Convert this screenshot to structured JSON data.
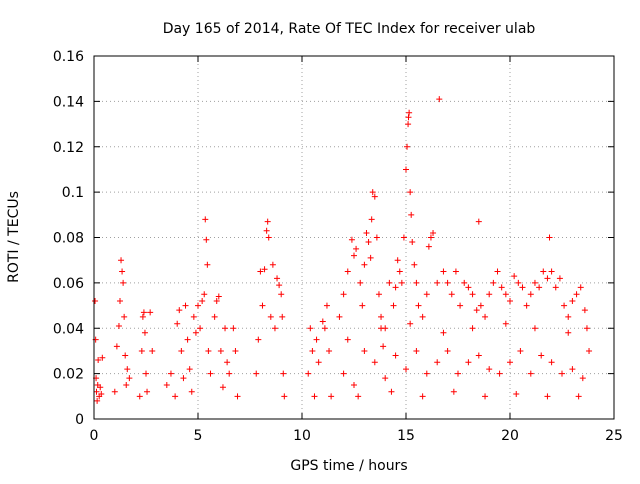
{
  "chart_data": {
    "type": "scatter",
    "title": "Day 165 of 2014, Rate Of TEC Index for receiver ulab",
    "xlabel": "GPS time / hours",
    "ylabel": "ROTI / TECUs",
    "xlim": [
      0,
      25
    ],
    "ylim": [
      0,
      0.16
    ],
    "xticks": [
      "0",
      "5",
      "10",
      "15",
      "20",
      "25"
    ],
    "yticks": [
      "0",
      "0.02",
      "0.04",
      "0.06",
      "0.08",
      "0.1",
      "0.12",
      "0.14",
      "0.16"
    ],
    "grid": true,
    "marker": "plus",
    "color": "#ff0000",
    "series": [
      {
        "points": [
          [
            0.05,
            0.052
          ],
          [
            0.08,
            0.035
          ],
          [
            0.1,
            0.018
          ],
          [
            0.12,
            0.012
          ],
          [
            0.15,
            0.008
          ],
          [
            0.18,
            0.015
          ],
          [
            0.2,
            0.026
          ],
          [
            0.25,
            0.01
          ],
          [
            0.3,
            0.014
          ],
          [
            0.35,
            0.011
          ],
          [
            0.4,
            0.027
          ],
          [
            1.0,
            0.012
          ],
          [
            1.1,
            0.032
          ],
          [
            1.2,
            0.041
          ],
          [
            1.25,
            0.052
          ],
          [
            1.3,
            0.07
          ],
          [
            1.35,
            0.065
          ],
          [
            1.4,
            0.06
          ],
          [
            1.45,
            0.045
          ],
          [
            1.5,
            0.028
          ],
          [
            1.55,
            0.015
          ],
          [
            1.6,
            0.022
          ],
          [
            1.7,
            0.018
          ],
          [
            2.2,
            0.01
          ],
          [
            2.3,
            0.03
          ],
          [
            2.35,
            0.045
          ],
          [
            2.4,
            0.047
          ],
          [
            2.45,
            0.038
          ],
          [
            2.5,
            0.02
          ],
          [
            2.55,
            0.012
          ],
          [
            2.7,
            0.047
          ],
          [
            2.8,
            0.03
          ],
          [
            3.5,
            0.015
          ],
          [
            3.7,
            0.02
          ],
          [
            3.9,
            0.01
          ],
          [
            4.0,
            0.042
          ],
          [
            4.1,
            0.048
          ],
          [
            4.2,
            0.03
          ],
          [
            4.3,
            0.018
          ],
          [
            4.4,
            0.05
          ],
          [
            4.5,
            0.035
          ],
          [
            4.6,
            0.022
          ],
          [
            4.7,
            0.012
          ],
          [
            4.8,
            0.045
          ],
          [
            4.9,
            0.038
          ],
          [
            5.0,
            0.05
          ],
          [
            5.1,
            0.04
          ],
          [
            5.2,
            0.052
          ],
          [
            5.3,
            0.055
          ],
          [
            5.35,
            0.088
          ],
          [
            5.4,
            0.079
          ],
          [
            5.45,
            0.068
          ],
          [
            5.5,
            0.03
          ],
          [
            5.6,
            0.02
          ],
          [
            5.8,
            0.045
          ],
          [
            5.9,
            0.052
          ],
          [
            6.0,
            0.054
          ],
          [
            6.1,
            0.03
          ],
          [
            6.2,
            0.014
          ],
          [
            6.3,
            0.04
          ],
          [
            6.4,
            0.025
          ],
          [
            6.5,
            0.02
          ],
          [
            6.7,
            0.04
          ],
          [
            6.8,
            0.03
          ],
          [
            6.9,
            0.01
          ],
          [
            7.8,
            0.02
          ],
          [
            7.9,
            0.035
          ],
          [
            8.0,
            0.065
          ],
          [
            8.1,
            0.05
          ],
          [
            8.2,
            0.066
          ],
          [
            8.3,
            0.083
          ],
          [
            8.35,
            0.087
          ],
          [
            8.4,
            0.08
          ],
          [
            8.5,
            0.045
          ],
          [
            8.6,
            0.068
          ],
          [
            8.7,
            0.04
          ],
          [
            8.8,
            0.062
          ],
          [
            8.9,
            0.059
          ],
          [
            9.0,
            0.055
          ],
          [
            9.05,
            0.045
          ],
          [
            9.1,
            0.02
          ],
          [
            9.15,
            0.01
          ],
          [
            10.3,
            0.02
          ],
          [
            10.4,
            0.04
          ],
          [
            10.5,
            0.03
          ],
          [
            10.6,
            0.01
          ],
          [
            10.7,
            0.035
          ],
          [
            10.8,
            0.025
          ],
          [
            11.0,
            0.043
          ],
          [
            11.1,
            0.04
          ],
          [
            11.2,
            0.05
          ],
          [
            11.3,
            0.03
          ],
          [
            11.4,
            0.01
          ],
          [
            11.8,
            0.045
          ],
          [
            12.0,
            0.055
          ],
          [
            12.2,
            0.065
          ],
          [
            12.4,
            0.079
          ],
          [
            12.5,
            0.072
          ],
          [
            12.6,
            0.075
          ],
          [
            12.8,
            0.06
          ],
          [
            12.9,
            0.05
          ],
          [
            13.0,
            0.068
          ],
          [
            13.1,
            0.082
          ],
          [
            13.2,
            0.078
          ],
          [
            13.3,
            0.071
          ],
          [
            13.35,
            0.088
          ],
          [
            13.4,
            0.1
          ],
          [
            13.5,
            0.098
          ],
          [
            13.6,
            0.08
          ],
          [
            13.7,
            0.055
          ],
          [
            13.8,
            0.045
          ],
          [
            13.9,
            0.032
          ],
          [
            14.0,
            0.04
          ],
          [
            14.2,
            0.06
          ],
          [
            14.4,
            0.05
          ],
          [
            14.5,
            0.058
          ],
          [
            14.6,
            0.07
          ],
          [
            14.7,
            0.065
          ],
          [
            14.8,
            0.06
          ],
          [
            14.9,
            0.08
          ],
          [
            15.0,
            0.11
          ],
          [
            15.05,
            0.12
          ],
          [
            15.1,
            0.13
          ],
          [
            15.12,
            0.133
          ],
          [
            15.15,
            0.135
          ],
          [
            15.2,
            0.1
          ],
          [
            15.25,
            0.09
          ],
          [
            15.3,
            0.078
          ],
          [
            15.4,
            0.068
          ],
          [
            15.5,
            0.06
          ],
          [
            15.6,
            0.05
          ],
          [
            15.8,
            0.045
          ],
          [
            16.0,
            0.055
          ],
          [
            16.1,
            0.076
          ],
          [
            16.2,
            0.08
          ],
          [
            16.3,
            0.082
          ],
          [
            16.5,
            0.06
          ],
          [
            16.6,
            0.141
          ],
          [
            16.8,
            0.065
          ],
          [
            17.0,
            0.06
          ],
          [
            17.2,
            0.055
          ],
          [
            17.4,
            0.065
          ],
          [
            17.6,
            0.05
          ],
          [
            17.8,
            0.06
          ],
          [
            18.0,
            0.058
          ],
          [
            18.2,
            0.055
          ],
          [
            18.4,
            0.048
          ],
          [
            18.5,
            0.087
          ],
          [
            18.6,
            0.05
          ],
          [
            18.8,
            0.045
          ],
          [
            19.0,
            0.055
          ],
          [
            19.2,
            0.06
          ],
          [
            19.4,
            0.065
          ],
          [
            19.6,
            0.058
          ],
          [
            19.8,
            0.055
          ],
          [
            20.0,
            0.052
          ],
          [
            20.2,
            0.063
          ],
          [
            20.4,
            0.06
          ],
          [
            20.6,
            0.058
          ],
          [
            20.8,
            0.05
          ],
          [
            21.0,
            0.055
          ],
          [
            21.2,
            0.06
          ],
          [
            21.4,
            0.058
          ],
          [
            21.6,
            0.065
          ],
          [
            21.8,
            0.062
          ],
          [
            21.9,
            0.08
          ],
          [
            22.0,
            0.065
          ],
          [
            22.2,
            0.058
          ],
          [
            22.4,
            0.062
          ],
          [
            22.6,
            0.05
          ],
          [
            22.8,
            0.045
          ],
          [
            23.0,
            0.052
          ],
          [
            23.2,
            0.055
          ],
          [
            23.4,
            0.058
          ],
          [
            23.6,
            0.048
          ],
          [
            23.7,
            0.04
          ],
          [
            23.8,
            0.03
          ],
          [
            12.0,
            0.02
          ],
          [
            12.5,
            0.015
          ],
          [
            13.0,
            0.03
          ],
          [
            13.5,
            0.025
          ],
          [
            14.0,
            0.018
          ],
          [
            14.5,
            0.028
          ],
          [
            15.0,
            0.022
          ],
          [
            15.5,
            0.03
          ],
          [
            16.0,
            0.02
          ],
          [
            16.5,
            0.025
          ],
          [
            17.0,
            0.03
          ],
          [
            17.5,
            0.02
          ],
          [
            18.0,
            0.025
          ],
          [
            18.5,
            0.028
          ],
          [
            19.0,
            0.022
          ],
          [
            19.5,
            0.02
          ],
          [
            20.0,
            0.025
          ],
          [
            20.5,
            0.03
          ],
          [
            21.0,
            0.02
          ],
          [
            21.5,
            0.028
          ],
          [
            22.0,
            0.025
          ],
          [
            22.5,
            0.02
          ],
          [
            23.0,
            0.022
          ],
          [
            23.5,
            0.018
          ],
          [
            12.2,
            0.035
          ],
          [
            13.8,
            0.04
          ],
          [
            15.2,
            0.042
          ],
          [
            16.8,
            0.038
          ],
          [
            18.2,
            0.04
          ],
          [
            19.8,
            0.042
          ],
          [
            21.2,
            0.04
          ],
          [
            22.8,
            0.038
          ],
          [
            12.7,
            0.01
          ],
          [
            14.3,
            0.012
          ],
          [
            15.8,
            0.01
          ],
          [
            17.3,
            0.012
          ],
          [
            18.8,
            0.01
          ],
          [
            20.3,
            0.011
          ],
          [
            21.8,
            0.01
          ],
          [
            23.3,
            0.01
          ]
        ]
      }
    ]
  }
}
